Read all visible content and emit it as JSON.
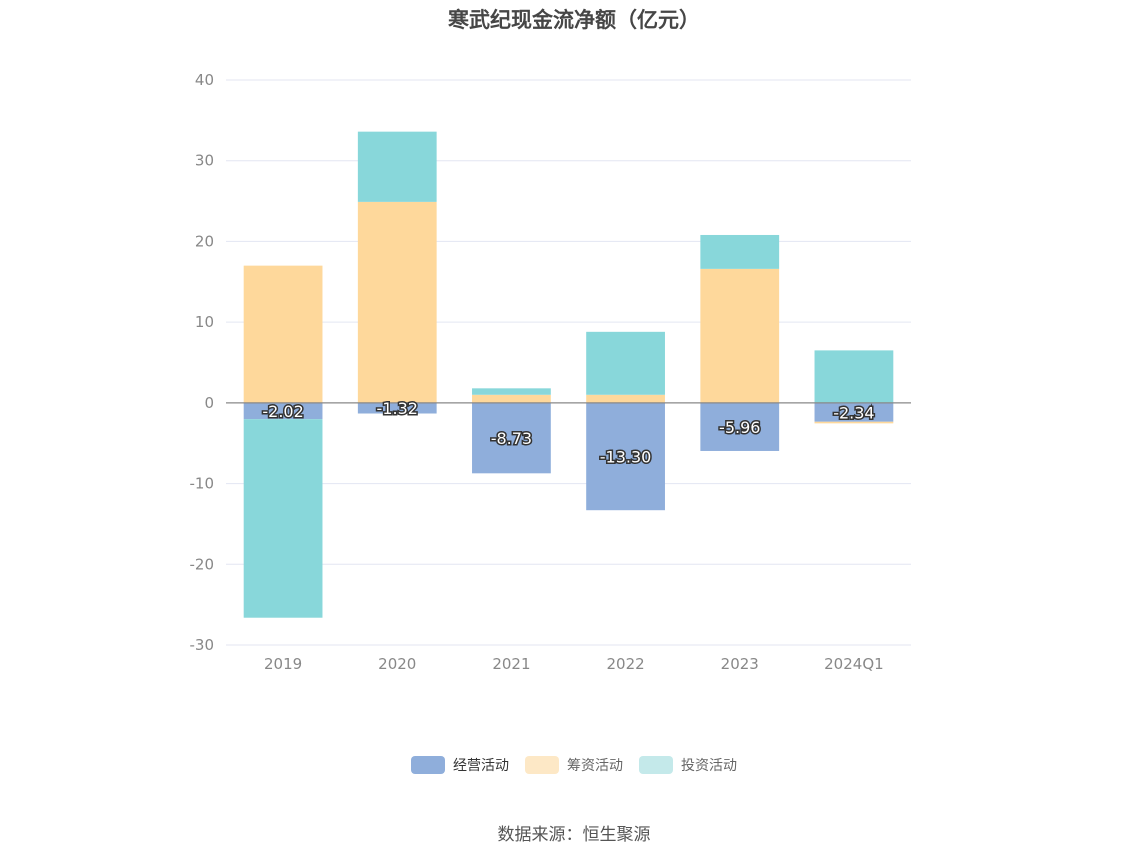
{
  "chart_data": {
    "type": "bar",
    "stacked": true,
    "title": "寒武纪现金流净额（亿元）",
    "categories": [
      "2019",
      "2020",
      "2021",
      "2022",
      "2023",
      "2024Q1"
    ],
    "series": [
      {
        "name": "经营活动",
        "color": "#8faedb",
        "values": [
          -2.02,
          -1.32,
          -8.73,
          -13.3,
          -5.96,
          -2.34
        ],
        "labels": [
          "-2.02",
          "-1.32",
          "-8.73",
          "-13.30",
          "-5.96",
          "-2.34"
        ]
      },
      {
        "name": "筹资活动",
        "color": "#fed89b",
        "values": [
          17.0,
          24.9,
          1.0,
          1.0,
          16.6,
          -0.2
        ]
      },
      {
        "name": "投资活动",
        "color": "#88d7da",
        "values": [
          -24.6,
          8.7,
          0.8,
          7.8,
          4.2,
          6.5
        ]
      }
    ],
    "ylim": [
      -30,
      40
    ],
    "yticks": [
      40,
      30,
      20,
      10,
      0,
      -10,
      -20,
      -30
    ],
    "grid": true,
    "legend_position": "bottom"
  },
  "legend": {
    "items": [
      {
        "label": "经营活动",
        "color": "#8faedb"
      },
      {
        "label": "筹资活动",
        "color": "#fde8c6"
      },
      {
        "label": "投资活动",
        "color": "#c4e9ea"
      }
    ]
  },
  "source": "数据来源：恒生聚源"
}
